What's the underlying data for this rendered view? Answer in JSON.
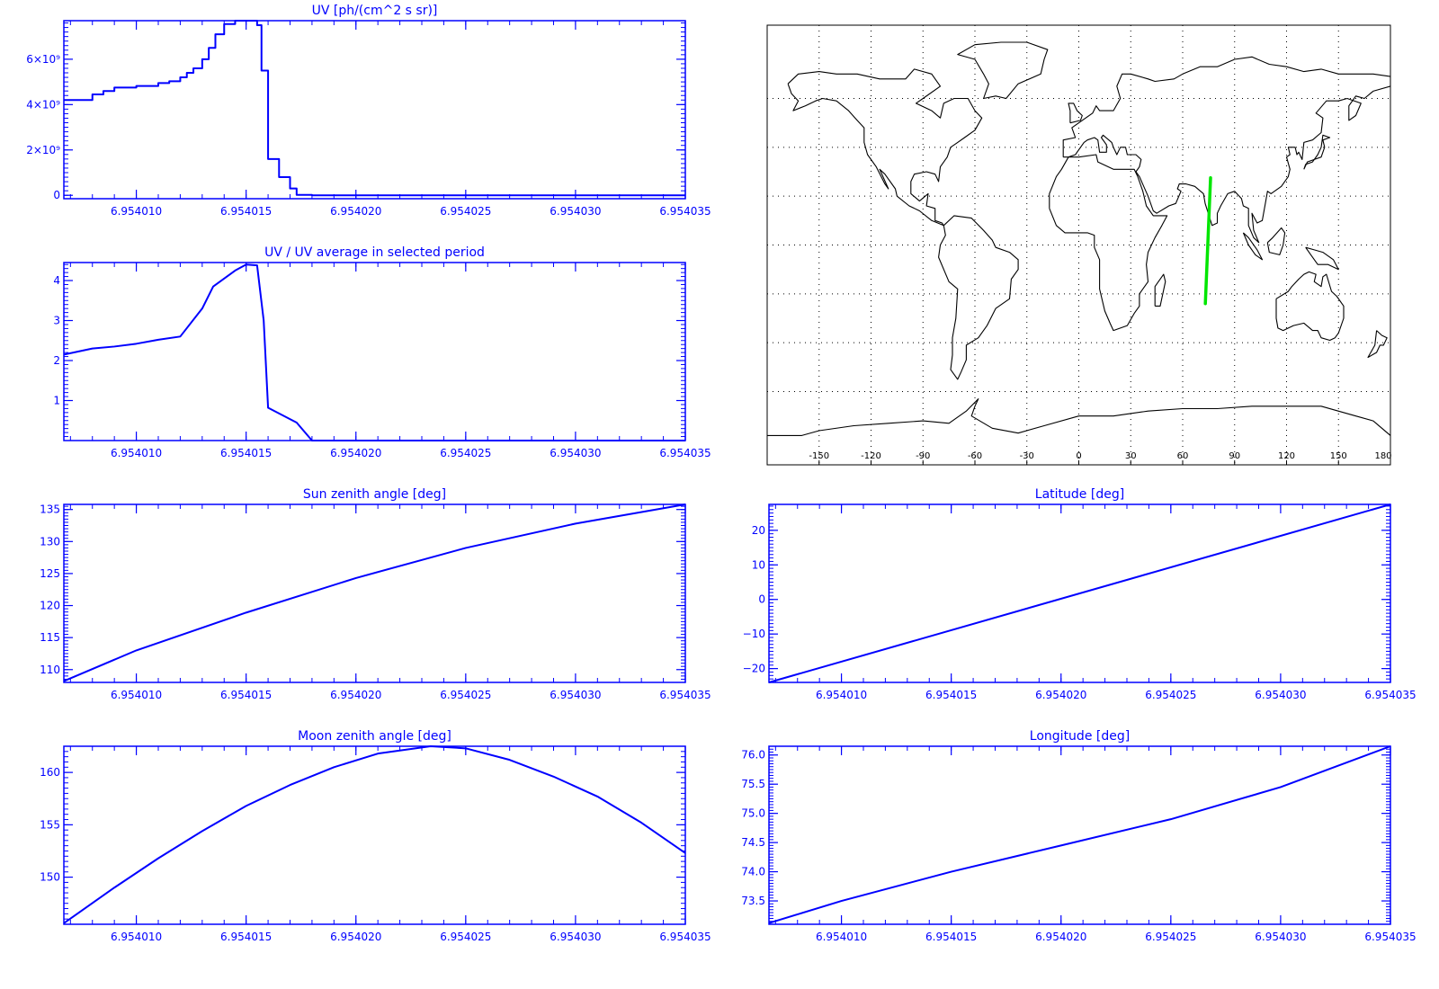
{
  "colors": {
    "axis": "#0000ff",
    "line": "#0000ff",
    "track": "#00e600",
    "map_line": "#000000",
    "map_grid": "#000000"
  },
  "chart_data": [
    {
      "id": "uv",
      "type": "line",
      "step": true,
      "title": "UV [ph/(cm^2 s sr)]",
      "xlabel": "",
      "ylabel": "",
      "xlim": [
        6.9540067,
        6.954035
      ],
      "ylim": [
        -150000000,
        7700000000
      ],
      "xticks": [
        6.95401,
        6.954015,
        6.95402,
        6.954025,
        6.95403,
        6.954035
      ],
      "xtick_labels": [
        "6.954010",
        "6.954015",
        "6.954020",
        "6.954025",
        "6.954030",
        "6.954035"
      ],
      "yticks": [
        0,
        2000000000,
        4000000000,
        6000000000
      ],
      "ytick_labels": [
        "0",
        "2×10⁹",
        "4×10⁹",
        "6×10⁹"
      ],
      "series": [
        {
          "x": [
            6.9540067,
            6.954008,
            6.9540085,
            6.954009,
            6.95401,
            6.954011,
            6.9540115,
            6.954012,
            6.9540123,
            6.9540126,
            6.954013,
            6.9540133,
            6.9540136,
            6.954014,
            6.9540145,
            6.954015,
            6.9540155,
            6.9540157,
            6.954016,
            6.9540165,
            6.954017,
            6.9540173,
            6.954018,
            6.954019,
            6.954035
          ],
          "y": [
            4200000000,
            4450000000,
            4600000000,
            4750000000,
            4820000000,
            4950000000,
            5030000000,
            5200000000,
            5400000000,
            5600000000,
            6000000000,
            6500000000,
            7100000000,
            7550000000,
            7700000000,
            7700000000,
            7500000000,
            5500000000,
            1600000000,
            800000000,
            300000000,
            20000000,
            0,
            0,
            0
          ]
        }
      ]
    },
    {
      "id": "uv-ratio",
      "type": "line",
      "title": "UV / UV average in selected period",
      "xlabel": "",
      "ylabel": "",
      "xlim": [
        6.9540067,
        6.954035
      ],
      "ylim": [
        0,
        4.45
      ],
      "xticks": [
        6.95401,
        6.954015,
        6.95402,
        6.954025,
        6.95403,
        6.954035
      ],
      "xtick_labels": [
        "6.954010",
        "6.954015",
        "6.954020",
        "6.954025",
        "6.954030",
        "6.954035"
      ],
      "yticks": [
        1,
        2,
        3,
        4
      ],
      "ytick_labels": [
        "1",
        "2",
        "3",
        "4"
      ],
      "series": [
        {
          "x": [
            6.9540067,
            6.954008,
            6.954009,
            6.95401,
            6.954011,
            6.954012,
            6.954013,
            6.9540135,
            6.954014,
            6.9540145,
            6.954015,
            6.9540155,
            6.9540158,
            6.954016,
            6.9540173,
            6.954018,
            6.954035
          ],
          "y": [
            2.15,
            2.3,
            2.35,
            2.42,
            2.52,
            2.6,
            3.3,
            3.85,
            4.05,
            4.25,
            4.4,
            4.38,
            3.0,
            0.82,
            0.45,
            0.0,
            0.0
          ]
        }
      ]
    },
    {
      "id": "sun-zenith",
      "type": "line",
      "title": "Sun zenith angle [deg]",
      "xlabel": "",
      "ylabel": "",
      "xlim": [
        6.9540067,
        6.954035
      ],
      "ylim": [
        108,
        135.8
      ],
      "xticks": [
        6.95401,
        6.954015,
        6.95402,
        6.954025,
        6.95403,
        6.954035
      ],
      "xtick_labels": [
        "6.954010",
        "6.954015",
        "6.954020",
        "6.954025",
        "6.954030",
        "6.954035"
      ],
      "yticks": [
        110,
        115,
        120,
        125,
        130,
        135
      ],
      "ytick_labels": [
        "110",
        "115",
        "120",
        "125",
        "130",
        "135"
      ],
      "series": [
        {
          "x": [
            6.9540067,
            6.95401,
            6.954015,
            6.95402,
            6.954025,
            6.95403,
            6.954035
          ],
          "y": [
            108.2,
            113.0,
            118.9,
            124.3,
            129.0,
            132.8,
            135.8
          ]
        }
      ]
    },
    {
      "id": "latitude",
      "type": "line",
      "title": "Latitude [deg]",
      "xlabel": "",
      "ylabel": "",
      "xlim": [
        6.9540067,
        6.954035
      ],
      "ylim": [
        -24,
        27.5
      ],
      "xticks": [
        6.95401,
        6.954015,
        6.95402,
        6.954025,
        6.95403,
        6.954035
      ],
      "xtick_labels": [
        "6.954010",
        "6.954015",
        "6.954020",
        "6.954025",
        "6.954030",
        "6.954035"
      ],
      "yticks": [
        -20,
        -10,
        0,
        10,
        20
      ],
      "ytick_labels": [
        "−20",
        "−10",
        "0",
        "10",
        "20"
      ],
      "series": [
        {
          "x": [
            6.9540067,
            6.954035
          ],
          "y": [
            -24,
            27.5
          ]
        }
      ]
    },
    {
      "id": "moon-zenith",
      "type": "line",
      "title": "Moon zenith angle [deg]",
      "xlabel": "",
      "ylabel": "",
      "xlim": [
        6.9540067,
        6.954035
      ],
      "ylim": [
        145.5,
        162.5
      ],
      "xticks": [
        6.95401,
        6.954015,
        6.95402,
        6.954025,
        6.95403,
        6.954035
      ],
      "xtick_labels": [
        "6.954010",
        "6.954015",
        "6.954020",
        "6.954025",
        "6.954030",
        "6.954035"
      ],
      "yticks": [
        150,
        155,
        160
      ],
      "ytick_labels": [
        "150",
        "155",
        "160"
      ],
      "series": [
        {
          "x": [
            6.9540067,
            6.954009,
            6.954011,
            6.954013,
            6.954015,
            6.954017,
            6.954019,
            6.954021,
            6.9540234,
            6.954025,
            6.954027,
            6.954029,
            6.954031,
            6.954033,
            6.954035
          ],
          "y": [
            145.6,
            149.0,
            151.8,
            154.4,
            156.8,
            158.8,
            160.5,
            161.8,
            162.5,
            162.3,
            161.2,
            159.6,
            157.7,
            155.2,
            152.3
          ]
        }
      ]
    },
    {
      "id": "longitude",
      "type": "line",
      "title": "Longitude [deg]",
      "xlabel": "",
      "ylabel": "",
      "xlim": [
        6.9540067,
        6.954035
      ],
      "ylim": [
        73.1,
        76.15
      ],
      "xticks": [
        6.95401,
        6.954015,
        6.95402,
        6.954025,
        6.95403,
        6.954035
      ],
      "xtick_labels": [
        "6.954010",
        "6.954015",
        "6.954020",
        "6.954025",
        "6.954030",
        "6.954035"
      ],
      "yticks": [
        73.5,
        74.0,
        74.5,
        75.0,
        75.5,
        76.0
      ],
      "ytick_labels": [
        "73.5",
        "74.0",
        "74.5",
        "75.0",
        "75.5",
        "76.0"
      ],
      "series": [
        {
          "x": [
            6.9540067,
            6.95401,
            6.954015,
            6.95402,
            6.954025,
            6.95403,
            6.954035
          ],
          "y": [
            73.12,
            73.5,
            74.0,
            74.45,
            74.9,
            75.45,
            76.15
          ]
        }
      ]
    },
    {
      "id": "world-map",
      "type": "scatter",
      "title": "",
      "xlabel": "",
      "ylabel": "",
      "xlim": [
        -180,
        180
      ],
      "ylim": [
        -90,
        90
      ],
      "xticks": [
        -150,
        -120,
        -90,
        -60,
        -30,
        0,
        30,
        60,
        90,
        120,
        150,
        180
      ],
      "xtick_labels": [
        "-150",
        "-120",
        "-90",
        "-60",
        "-30",
        "0",
        "30",
        "60",
        "90",
        "120",
        "150",
        "180"
      ],
      "grid": true,
      "series": [
        {
          "x": [
            76.1,
            73.1
          ],
          "y": [
            27.5,
            -24.0
          ]
        }
      ]
    }
  ]
}
